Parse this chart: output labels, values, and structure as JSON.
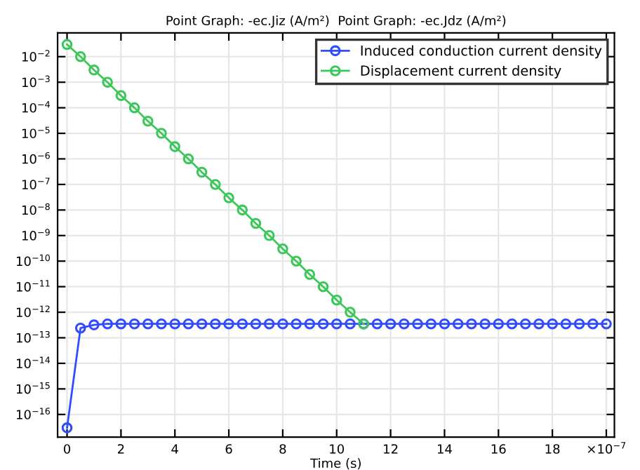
{
  "chart_data": {
    "type": "line",
    "title": "Point Graph: -ec.Jiz (A/m²)  Point Graph: -ec.Jdz (A/m²)",
    "xlabel": "Time (s)",
    "log": "y",
    "grid": true,
    "legend": "top right",
    "marker": "circle",
    "line_style": "solid",
    "xlim": [
      -0.35,
      20.3
    ],
    "ylim": [
      1.3e-17,
      0.085
    ],
    "xticks": [
      0,
      2,
      4,
      6,
      8,
      10,
      12,
      14,
      16,
      18,
      {
        "value": 20,
        "label": "×10$^{−7}$"
      }
    ],
    "yticks": [
      {
        "value": 1e-16,
        "label": "10$^{−16}$"
      },
      {
        "value": 1e-15,
        "label": "10$^{−15}$"
      },
      {
        "value": 1e-14,
        "label": "10$^{−14}$"
      },
      {
        "value": 1e-13,
        "label": "10$^{−13}$"
      },
      {
        "value": 1e-12,
        "label": "10$^{−12}$"
      },
      {
        "value": 1e-11,
        "label": "10$^{−11}$"
      },
      {
        "value": 1e-10,
        "label": "10$^{−10}$"
      },
      {
        "value": 1e-09,
        "label": "10$^{−9}$"
      },
      {
        "value": 1e-08,
        "label": "10$^{−8}$"
      },
      {
        "value": 1e-07,
        "label": "10$^{−7}$"
      },
      {
        "value": 1e-06,
        "label": "10$^{−6}$"
      },
      {
        "value": 1e-05,
        "label": "10$^{−5}$"
      },
      {
        "value": 0.0001,
        "label": "10$^{−4}$"
      },
      {
        "value": 0.001,
        "label": "10$^{−3}$"
      },
      {
        "value": 0.01,
        "label": "10$^{−2}$"
      }
    ],
    "series": [
      {
        "name": "Induced conduction current density",
        "color": "#2f4dff",
        "x": [
          0,
          0.5,
          1,
          1.5,
          2,
          2.5,
          3,
          3.5,
          4,
          4.5,
          5,
          5.5,
          6,
          6.5,
          7,
          7.5,
          8,
          8.5,
          9,
          9.5,
          10,
          10.5,
          11,
          11.5,
          12,
          12.5,
          13,
          13.5,
          14,
          14.5,
          15,
          15.5,
          16,
          16.5,
          17,
          17.5,
          18,
          18.5,
          19,
          19.5,
          20
        ],
        "values": [
          3e-17,
          2.4e-13,
          3.2e-13,
          3.5e-13,
          3.5e-13,
          3.5e-13,
          3.5e-13,
          3.5e-13,
          3.5e-13,
          3.5e-13,
          3.5e-13,
          3.5e-13,
          3.5e-13,
          3.5e-13,
          3.5e-13,
          3.5e-13,
          3.5e-13,
          3.5e-13,
          3.5e-13,
          3.5e-13,
          3.5e-13,
          3.5e-13,
          3.5e-13,
          3.5e-13,
          3.5e-13,
          3.5e-13,
          3.5e-13,
          3.5e-13,
          3.5e-13,
          3.5e-13,
          3.5e-13,
          3.5e-13,
          3.5e-13,
          3.5e-13,
          3.5e-13,
          3.5e-13,
          3.5e-13,
          3.5e-13,
          3.5e-13,
          3.5e-13,
          3.5e-13
        ]
      },
      {
        "name": "Displacement current density",
        "color": "#3cc75a",
        "x": [
          0,
          0.5,
          1,
          1.5,
          2,
          2.5,
          3,
          3.5,
          4,
          4.5,
          5,
          5.5,
          6,
          6.5,
          7,
          7.5,
          8,
          8.5,
          9,
          9.5,
          10,
          10.5,
          11
        ],
        "values": [
          0.03,
          0.01,
          0.003,
          0.001,
          0.0003,
          0.0001,
          3e-05,
          1e-05,
          3e-06,
          1e-06,
          3e-07,
          1e-07,
          3e-08,
          1e-08,
          3e-09,
          1e-09,
          3e-10,
          1e-10,
          3e-11,
          1e-11,
          3e-12,
          1e-12,
          3.5e-13
        ]
      }
    ]
  }
}
